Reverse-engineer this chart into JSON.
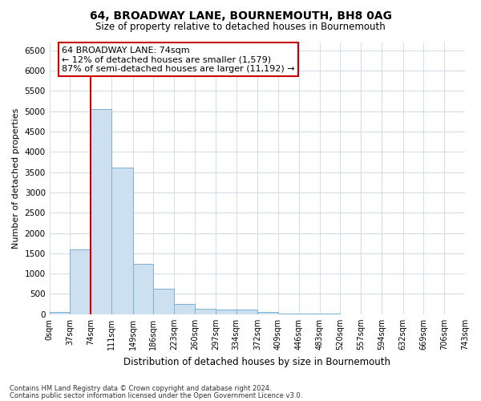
{
  "title": "64, BROADWAY LANE, BOURNEMOUTH, BH8 0AG",
  "subtitle": "Size of property relative to detached houses in Bournemouth",
  "xlabel": "Distribution of detached houses by size in Bournemouth",
  "ylabel": "Number of detached properties",
  "footer_line1": "Contains HM Land Registry data © Crown copyright and database right 2024.",
  "footer_line2": "Contains public sector information licensed under the Open Government Licence v3.0.",
  "annotation_title": "64 BROADWAY LANE: 74sqm",
  "annotation_line1": "← 12% of detached houses are smaller (1,579)",
  "annotation_line2": "87% of semi-detached houses are larger (11,192) →",
  "property_size": 74,
  "bar_color": "#cce0f0",
  "bar_edge_color": "#7bafd4",
  "vline_color": "#cc0000",
  "annotation_box_color": "#ffffff",
  "annotation_box_edge": "#cc0000",
  "grid_color": "#d0dce8",
  "bg_color": "#ffffff",
  "bin_edges": [
    0,
    37,
    74,
    111,
    149,
    186,
    223,
    260,
    297,
    334,
    372,
    409,
    446,
    483,
    520,
    557,
    594,
    632,
    669,
    706,
    743
  ],
  "bar_heights": [
    55,
    1600,
    5050,
    3600,
    1250,
    620,
    260,
    140,
    115,
    105,
    65,
    25,
    12,
    8,
    4,
    2,
    1,
    1,
    0,
    0
  ],
  "ylim": [
    0,
    6700
  ],
  "yticks": [
    0,
    500,
    1000,
    1500,
    2000,
    2500,
    3000,
    3500,
    4000,
    4500,
    5000,
    5500,
    6000,
    6500
  ],
  "figsize": [
    6.0,
    5.0
  ],
  "dpi": 100
}
